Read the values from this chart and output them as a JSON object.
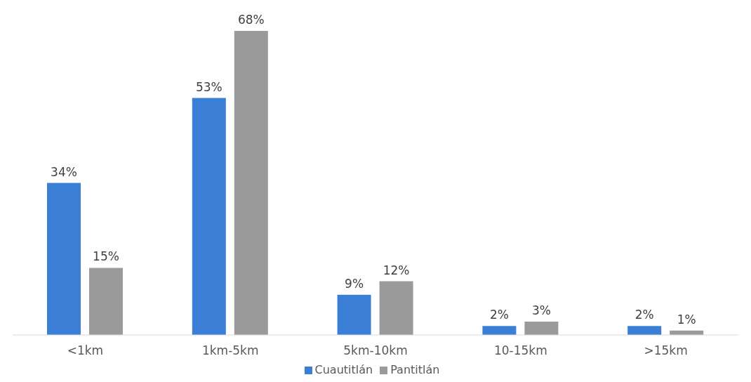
{
  "chart_data": {
    "type": "bar",
    "categories": [
      "<1km",
      "1km-5km",
      "5km-10km",
      "10-15km",
      ">15km"
    ],
    "series": [
      {
        "name": "Cuautitlán",
        "color": "#3a7fd5",
        "values": [
          34,
          53,
          9,
          2,
          2
        ],
        "value_labels": [
          "34%",
          "53%",
          "9%",
          "2%",
          "2%"
        ]
      },
      {
        "name": "Pantitlán",
        "color": "#9a9a9a",
        "values": [
          15,
          68,
          12,
          3,
          1
        ],
        "value_labels": [
          "15%",
          "68%",
          "12%",
          "3%",
          "1%"
        ]
      }
    ],
    "legend": "bottom"
  }
}
